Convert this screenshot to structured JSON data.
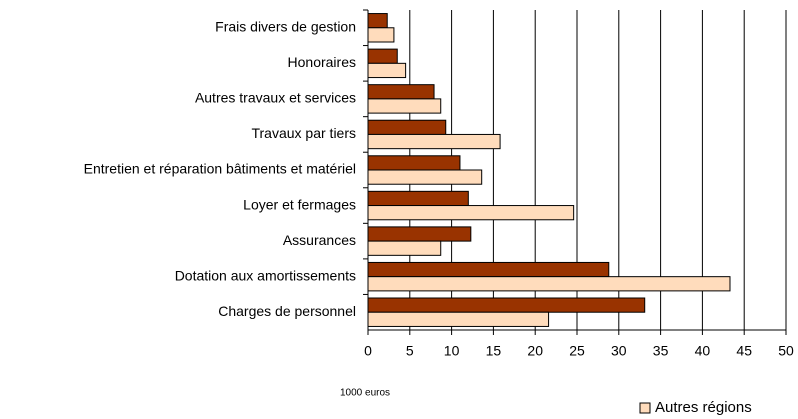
{
  "chart_data": {
    "type": "hbar",
    "categories": [
      "Frais divers de gestion",
      "Honoraires",
      "Autres travaux et services",
      "Travaux par tiers",
      "Entretien et réparation bâtiments et matériel",
      "Loyer et fermages",
      "Assurances",
      "Dotation aux amortissements",
      "Charges de personnel"
    ],
    "series": [
      {
        "color": "#993300",
        "values": [
          2.3,
          3.5,
          7.9,
          9.3,
          11.0,
          12.0,
          12.3,
          28.8,
          33.1
        ]
      },
      {
        "name": "Autres régions",
        "color": "#ffdcbc",
        "values": [
          3.1,
          4.5,
          8.7,
          15.8,
          13.6,
          24.6,
          8.7,
          43.3,
          21.6
        ]
      }
    ],
    "xlim": [
      0,
      50
    ],
    "xticks": [
      0,
      5,
      10,
      15,
      20,
      25,
      30,
      35,
      40,
      45,
      50
    ],
    "xlabel": "1000 euros",
    "grid": true,
    "legend": "bottom-right"
  }
}
